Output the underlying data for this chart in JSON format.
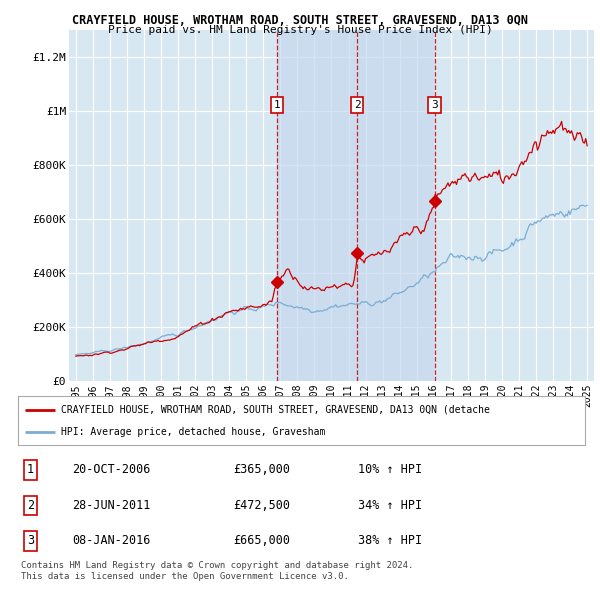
{
  "title": "CRAYFIELD HOUSE, WROTHAM ROAD, SOUTH STREET, GRAVESEND, DA13 0QN",
  "subtitle": "Price paid vs. HM Land Registry's House Price Index (HPI)",
  "legend_label_red": "CRAYFIELD HOUSE, WROTHAM ROAD, SOUTH STREET, GRAVESEND, DA13 0QN (detache",
  "legend_label_blue": "HPI: Average price, detached house, Gravesham",
  "footer1": "Contains HM Land Registry data © Crown copyright and database right 2024.",
  "footer2": "This data is licensed under the Open Government Licence v3.0.",
  "sale_points": [
    {
      "label": "1",
      "date": "20-OCT-2006",
      "price": 365000,
      "x_year": 2006.8
    },
    {
      "label": "2",
      "date": "28-JUN-2011",
      "price": 472500,
      "x_year": 2011.5
    },
    {
      "label": "3",
      "date": "08-JAN-2016",
      "price": 665000,
      "x_year": 2016.05
    }
  ],
  "sale_table": [
    {
      "num": "1",
      "date": "20-OCT-2006",
      "price": "£365,000",
      "change": "10% ↑ HPI"
    },
    {
      "num": "2",
      "date": "28-JUN-2011",
      "price": "£472,500",
      "change": "34% ↑ HPI"
    },
    {
      "num": "3",
      "date": "08-JAN-2016",
      "price": "£665,000",
      "change": "38% ↑ HPI"
    }
  ],
  "ylim": [
    0,
    1300000
  ],
  "xlim": [
    1994.6,
    2025.4
  ],
  "yticks": [
    0,
    200000,
    400000,
    600000,
    800000,
    1000000,
    1200000
  ],
  "ytick_labels": [
    "£0",
    "£200K",
    "£400K",
    "£600K",
    "£800K",
    "£1M",
    "£1.2M"
  ],
  "xticks": [
    1995,
    1996,
    1997,
    1998,
    1999,
    2000,
    2001,
    2002,
    2003,
    2004,
    2005,
    2006,
    2007,
    2008,
    2009,
    2010,
    2011,
    2012,
    2013,
    2014,
    2015,
    2016,
    2017,
    2018,
    2019,
    2020,
    2021,
    2022,
    2023,
    2024,
    2025
  ],
  "red_color": "#cc0000",
  "blue_color": "#7aadd4",
  "background_color": "#ffffff",
  "plot_bg_color": "#d8e8f3",
  "shade_color": "#c5d8ed",
  "grid_color": "#ffffff",
  "vline_color": "#cc0000"
}
